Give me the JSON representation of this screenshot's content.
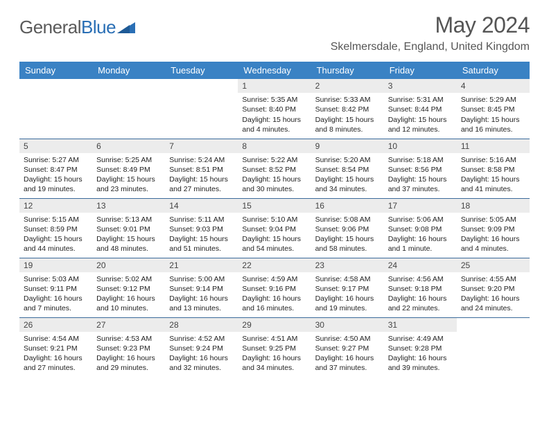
{
  "logo": {
    "part1": "General",
    "part2": "Blue"
  },
  "title": "May 2024",
  "location": "Skelmersdale, England, United Kingdom",
  "colors": {
    "header_bg": "#3a82c4",
    "header_text": "#ffffff",
    "daynum_bg": "#ececec",
    "row_border": "#3a6a9a",
    "logo_accent": "#2a6fb5",
    "title_color": "#555555"
  },
  "weekdays": [
    "Sunday",
    "Monday",
    "Tuesday",
    "Wednesday",
    "Thursday",
    "Friday",
    "Saturday"
  ],
  "cells": [
    {
      "n": "",
      "s": "",
      "ss": "",
      "d": ""
    },
    {
      "n": "",
      "s": "",
      "ss": "",
      "d": ""
    },
    {
      "n": "",
      "s": "",
      "ss": "",
      "d": ""
    },
    {
      "n": "1",
      "s": "Sunrise: 5:35 AM",
      "ss": "Sunset: 8:40 PM",
      "d": "Daylight: 15 hours and 4 minutes."
    },
    {
      "n": "2",
      "s": "Sunrise: 5:33 AM",
      "ss": "Sunset: 8:42 PM",
      "d": "Daylight: 15 hours and 8 minutes."
    },
    {
      "n": "3",
      "s": "Sunrise: 5:31 AM",
      "ss": "Sunset: 8:44 PM",
      "d": "Daylight: 15 hours and 12 minutes."
    },
    {
      "n": "4",
      "s": "Sunrise: 5:29 AM",
      "ss": "Sunset: 8:45 PM",
      "d": "Daylight: 15 hours and 16 minutes."
    },
    {
      "n": "5",
      "s": "Sunrise: 5:27 AM",
      "ss": "Sunset: 8:47 PM",
      "d": "Daylight: 15 hours and 19 minutes."
    },
    {
      "n": "6",
      "s": "Sunrise: 5:25 AM",
      "ss": "Sunset: 8:49 PM",
      "d": "Daylight: 15 hours and 23 minutes."
    },
    {
      "n": "7",
      "s": "Sunrise: 5:24 AM",
      "ss": "Sunset: 8:51 PM",
      "d": "Daylight: 15 hours and 27 minutes."
    },
    {
      "n": "8",
      "s": "Sunrise: 5:22 AM",
      "ss": "Sunset: 8:52 PM",
      "d": "Daylight: 15 hours and 30 minutes."
    },
    {
      "n": "9",
      "s": "Sunrise: 5:20 AM",
      "ss": "Sunset: 8:54 PM",
      "d": "Daylight: 15 hours and 34 minutes."
    },
    {
      "n": "10",
      "s": "Sunrise: 5:18 AM",
      "ss": "Sunset: 8:56 PM",
      "d": "Daylight: 15 hours and 37 minutes."
    },
    {
      "n": "11",
      "s": "Sunrise: 5:16 AM",
      "ss": "Sunset: 8:58 PM",
      "d": "Daylight: 15 hours and 41 minutes."
    },
    {
      "n": "12",
      "s": "Sunrise: 5:15 AM",
      "ss": "Sunset: 8:59 PM",
      "d": "Daylight: 15 hours and 44 minutes."
    },
    {
      "n": "13",
      "s": "Sunrise: 5:13 AM",
      "ss": "Sunset: 9:01 PM",
      "d": "Daylight: 15 hours and 48 minutes."
    },
    {
      "n": "14",
      "s": "Sunrise: 5:11 AM",
      "ss": "Sunset: 9:03 PM",
      "d": "Daylight: 15 hours and 51 minutes."
    },
    {
      "n": "15",
      "s": "Sunrise: 5:10 AM",
      "ss": "Sunset: 9:04 PM",
      "d": "Daylight: 15 hours and 54 minutes."
    },
    {
      "n": "16",
      "s": "Sunrise: 5:08 AM",
      "ss": "Sunset: 9:06 PM",
      "d": "Daylight: 15 hours and 58 minutes."
    },
    {
      "n": "17",
      "s": "Sunrise: 5:06 AM",
      "ss": "Sunset: 9:08 PM",
      "d": "Daylight: 16 hours and 1 minute."
    },
    {
      "n": "18",
      "s": "Sunrise: 5:05 AM",
      "ss": "Sunset: 9:09 PM",
      "d": "Daylight: 16 hours and 4 minutes."
    },
    {
      "n": "19",
      "s": "Sunrise: 5:03 AM",
      "ss": "Sunset: 9:11 PM",
      "d": "Daylight: 16 hours and 7 minutes."
    },
    {
      "n": "20",
      "s": "Sunrise: 5:02 AM",
      "ss": "Sunset: 9:12 PM",
      "d": "Daylight: 16 hours and 10 minutes."
    },
    {
      "n": "21",
      "s": "Sunrise: 5:00 AM",
      "ss": "Sunset: 9:14 PM",
      "d": "Daylight: 16 hours and 13 minutes."
    },
    {
      "n": "22",
      "s": "Sunrise: 4:59 AM",
      "ss": "Sunset: 9:16 PM",
      "d": "Daylight: 16 hours and 16 minutes."
    },
    {
      "n": "23",
      "s": "Sunrise: 4:58 AM",
      "ss": "Sunset: 9:17 PM",
      "d": "Daylight: 16 hours and 19 minutes."
    },
    {
      "n": "24",
      "s": "Sunrise: 4:56 AM",
      "ss": "Sunset: 9:18 PM",
      "d": "Daylight: 16 hours and 22 minutes."
    },
    {
      "n": "25",
      "s": "Sunrise: 4:55 AM",
      "ss": "Sunset: 9:20 PM",
      "d": "Daylight: 16 hours and 24 minutes."
    },
    {
      "n": "26",
      "s": "Sunrise: 4:54 AM",
      "ss": "Sunset: 9:21 PM",
      "d": "Daylight: 16 hours and 27 minutes."
    },
    {
      "n": "27",
      "s": "Sunrise: 4:53 AM",
      "ss": "Sunset: 9:23 PM",
      "d": "Daylight: 16 hours and 29 minutes."
    },
    {
      "n": "28",
      "s": "Sunrise: 4:52 AM",
      "ss": "Sunset: 9:24 PM",
      "d": "Daylight: 16 hours and 32 minutes."
    },
    {
      "n": "29",
      "s": "Sunrise: 4:51 AM",
      "ss": "Sunset: 9:25 PM",
      "d": "Daylight: 16 hours and 34 minutes."
    },
    {
      "n": "30",
      "s": "Sunrise: 4:50 AM",
      "ss": "Sunset: 9:27 PM",
      "d": "Daylight: 16 hours and 37 minutes."
    },
    {
      "n": "31",
      "s": "Sunrise: 4:49 AM",
      "ss": "Sunset: 9:28 PM",
      "d": "Daylight: 16 hours and 39 minutes."
    },
    {
      "n": "",
      "s": "",
      "ss": "",
      "d": ""
    }
  ]
}
